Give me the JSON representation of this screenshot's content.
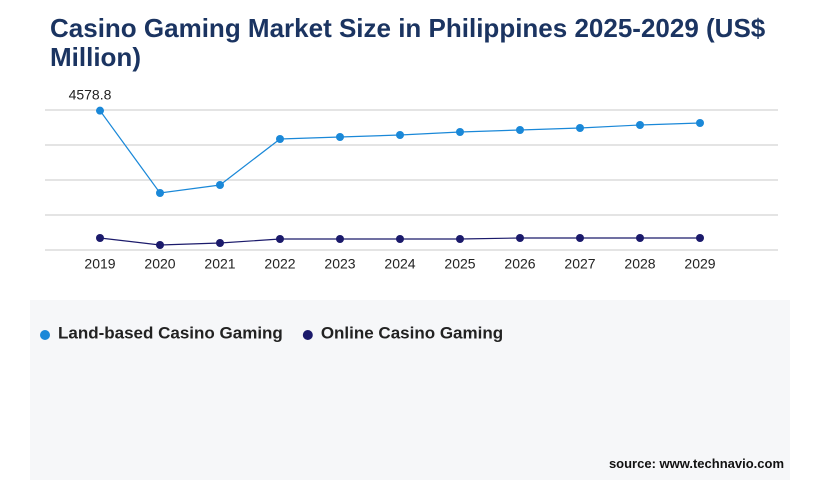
{
  "chart_data": {
    "type": "line",
    "title": "Casino Gaming Market Size in Philippines 2025-2029 (US$ Million)",
    "categories": [
      "2019",
      "2020",
      "2021",
      "2022",
      "2023",
      "2024",
      "2025",
      "2026",
      "2027",
      "2028",
      "2029"
    ],
    "series": [
      {
        "name": "Land-based Casino Gaming",
        "color": "#1a88d8",
        "values": [
          4578.8,
          1873,
          2136,
          3647,
          3713,
          3779,
          3877,
          3943,
          4009,
          4107,
          4173
        ]
      },
      {
        "name": "Online Casino Gaming",
        "color": "#1b1a6b",
        "values": [
          394,
          164,
          230,
          361,
          361,
          361,
          361,
          394,
          394,
          394,
          394
        ]
      }
    ],
    "ylim": [
      0,
      4600
    ],
    "yticks": [
      0,
      1150,
      2300,
      3450,
      4600
    ],
    "grid": true,
    "source": "source: www.technavio.com"
  }
}
